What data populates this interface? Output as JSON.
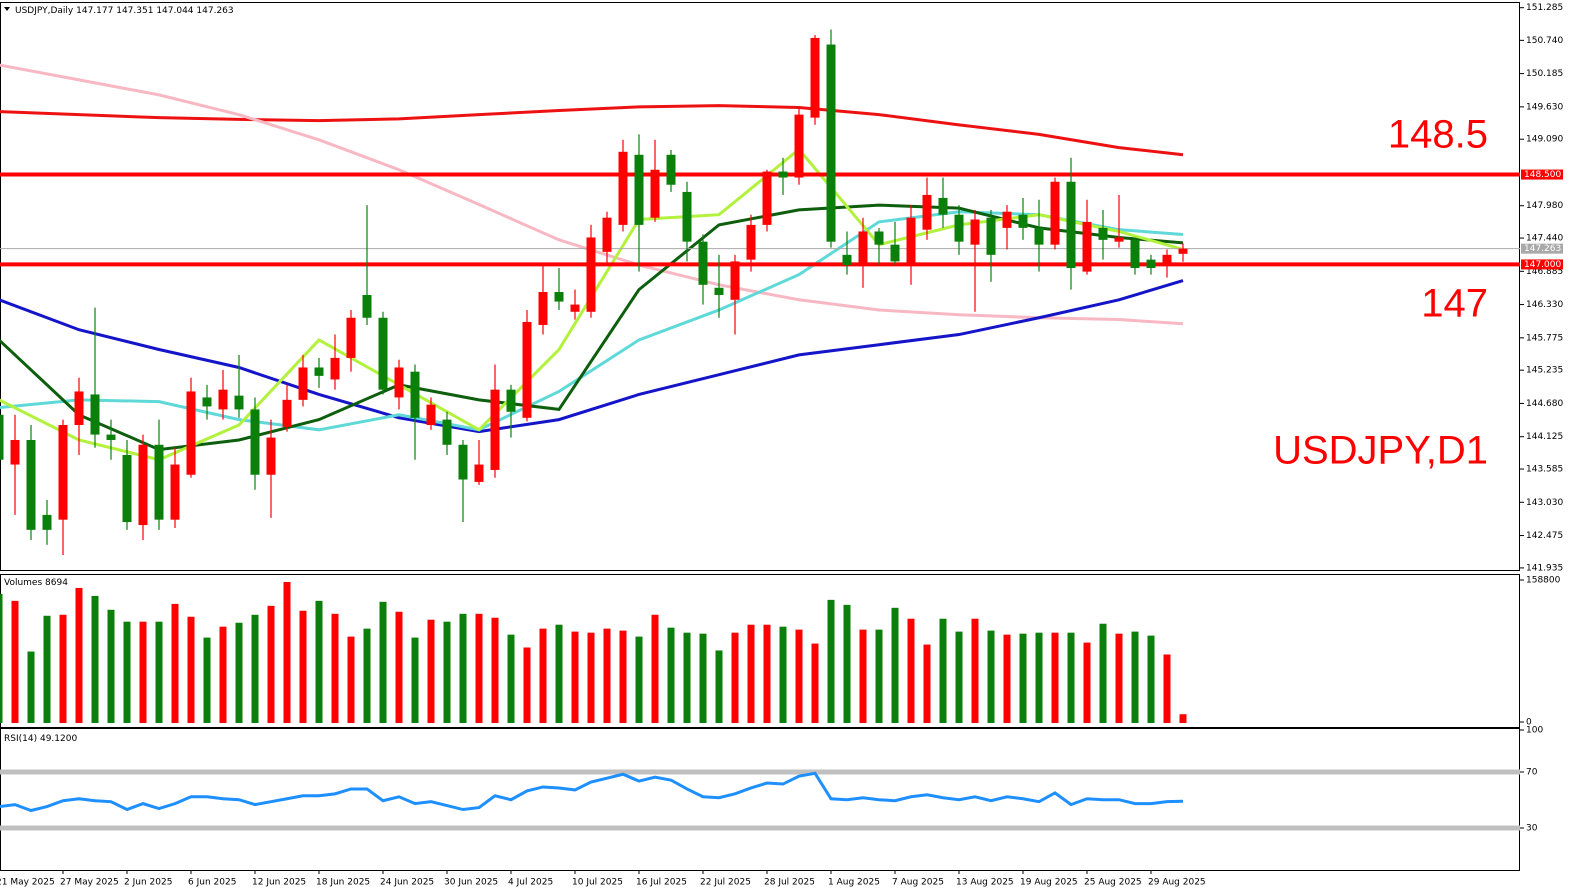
{
  "chart_data": [
    {
      "type": "candlestick",
      "header": {
        "symbol": "USDJPY,Daily",
        "ohlc": [
          147.177,
          147.351,
          147.044,
          147.263
        ]
      },
      "categories": [
        "21 May 2025",
        null,
        null,
        null,
        "27 May 2025",
        null,
        null,
        null,
        "2 Jun 2025",
        null,
        null,
        null,
        "6 Jun 2025",
        null,
        null,
        null,
        "12 Jun 2025",
        null,
        null,
        null,
        "18 Jun 2025",
        null,
        null,
        null,
        "24 Jun 2025",
        null,
        null,
        null,
        "30 Jun 2025",
        null,
        null,
        null,
        "4 Jul 2025",
        null,
        null,
        null,
        "10 Jul 2025",
        null,
        null,
        null,
        "16 Jul 2025",
        null,
        null,
        null,
        "22 Jul 2025",
        null,
        null,
        null,
        "28 Jul 2025",
        null,
        null,
        null,
        "1 Aug 2025",
        null,
        null,
        null,
        "7 Aug 2025",
        null,
        null,
        null,
        "13 Aug 2025",
        null,
        null,
        null,
        "19 Aug 2025",
        null,
        null,
        null,
        "25 Aug 2025",
        null,
        null,
        null,
        "29 Aug 2025",
        null,
        null
      ],
      "open": [
        144.49,
        143.66,
        144.07,
        142.82,
        142.74,
        144.32,
        144.83,
        144.16,
        143.82,
        142.65,
        143.99,
        142.74,
        143.49,
        144.78,
        144.58,
        144.81,
        144.58,
        143.49,
        144.29,
        144.74,
        145.28,
        145.08,
        145.44,
        146.49,
        146.11,
        144.78,
        145.21,
        144.32,
        144.41,
        143.99,
        143.37,
        143.57,
        144.91,
        144.44,
        145.99,
        146.54,
        146.21,
        146.21,
        147.21,
        147.66,
        148.83,
        147.78,
        148.83,
        148.21,
        147.38,
        146.61,
        146.41,
        147.08,
        147.66,
        148.55,
        148.45,
        149.45,
        150.67,
        147.16,
        146.99,
        147.55,
        147.33,
        146.99,
        147.58,
        148.11,
        147.83,
        147.33,
        147.78,
        147.61,
        147.83,
        147.61,
        147.33,
        148.38,
        146.88,
        147.61,
        147.38,
        147.41,
        147.08,
        146.99,
        147.177
      ],
      "high": [
        144.74,
        144.49,
        144.32,
        143.07,
        144.41,
        145.11,
        146.28,
        144.41,
        144.07,
        144.16,
        144.41,
        143.94,
        145.11,
        144.99,
        145.24,
        145.49,
        144.78,
        144.41,
        144.99,
        145.49,
        145.44,
        145.83,
        146.24,
        147.99,
        146.21,
        145.41,
        145.33,
        144.78,
        144.54,
        144.07,
        144.07,
        145.33,
        144.99,
        146.24,
        146.99,
        146.94,
        146.58,
        147.66,
        147.88,
        149.08,
        149.17,
        149.08,
        148.91,
        148.38,
        147.5,
        147.16,
        147.16,
        147.83,
        148.58,
        148.78,
        149.62,
        150.83,
        150.92,
        147.55,
        147.78,
        147.61,
        147.71,
        147.99,
        148.45,
        148.45,
        147.99,
        147.91,
        147.91,
        147.99,
        148.11,
        148.08,
        148.45,
        148.78,
        148.08,
        147.91,
        148.16,
        147.45,
        147.16,
        147.25,
        147.351
      ],
      "low": [
        143.24,
        142.82,
        142.4,
        142.32,
        142.15,
        143.82,
        143.94,
        143.74,
        142.57,
        142.4,
        142.57,
        142.6,
        143.44,
        144.41,
        144.41,
        144.44,
        143.24,
        142.77,
        144.21,
        144.63,
        144.94,
        144.91,
        145.21,
        145.99,
        144.83,
        144.58,
        143.74,
        144.24,
        143.82,
        142.7,
        143.32,
        143.44,
        144.11,
        144.38,
        145.83,
        146.24,
        146.08,
        146.11,
        146.99,
        147.55,
        146.88,
        147.71,
        148.21,
        147.05,
        146.33,
        146.11,
        145.83,
        146.88,
        147.55,
        148.16,
        148.33,
        149.33,
        147.28,
        146.83,
        146.61,
        146.99,
        146.99,
        146.66,
        147.41,
        147.61,
        147.16,
        146.21,
        146.71,
        147.25,
        147.41,
        146.88,
        147.25,
        146.58,
        146.83,
        147.08,
        147.28,
        146.83,
        146.83,
        146.78,
        147.044
      ],
      "close": [
        143.74,
        144.07,
        142.57,
        142.57,
        144.32,
        144.88,
        144.16,
        144.07,
        142.7,
        143.99,
        142.74,
        143.66,
        144.88,
        144.63,
        144.91,
        144.58,
        143.49,
        144.11,
        144.74,
        145.28,
        145.14,
        145.44,
        146.11,
        146.11,
        144.91,
        145.28,
        144.44,
        144.66,
        143.99,
        143.41,
        143.66,
        144.91,
        144.54,
        146.04,
        146.54,
        146.38,
        146.33,
        147.45,
        147.78,
        148.88,
        147.66,
        148.58,
        148.33,
        147.38,
        146.66,
        146.49,
        147.05,
        147.66,
        148.55,
        148.45,
        149.5,
        150.78,
        147.38,
        146.99,
        147.55,
        147.33,
        147.05,
        147.78,
        148.16,
        147.83,
        147.38,
        147.75,
        147.16,
        147.88,
        147.61,
        147.33,
        148.38,
        146.94,
        147.71,
        147.41,
        147.45,
        146.94,
        146.94,
        147.16,
        147.263
      ],
      "up_color": "#ff0000",
      "down_color": "#0a800a",
      "ylim": [
        141.9,
        151.38
      ],
      "yticks": [
        151.285,
        {
          "value": 150.74,
          "label": "150.740"
        },
        150.185,
        {
          "value": 149.63,
          "label": "149.630"
        },
        {
          "value": 149.09,
          "label": "149.090"
        },
        {
          "value": 147.98,
          "label": "147.980"
        },
        {
          "value": 147.44,
          "label": "147.440"
        },
        146.885,
        {
          "value": 146.33,
          "label": "146.330"
        },
        145.775,
        145.235,
        {
          "value": 144.68,
          "label": "144.680"
        },
        144.125,
        143.585,
        {
          "value": 143.03,
          "label": "143.030"
        },
        142.475,
        141.935
      ],
      "moving_averages": [
        {
          "color": "#ee1111",
          "x": [
            0,
            5,
            10,
            15,
            20,
            25,
            30,
            35,
            40,
            45,
            50,
            55,
            60,
            65,
            70,
            74
          ],
          "values": [
            149.55,
            149.5,
            149.45,
            149.42,
            149.4,
            149.43,
            149.5,
            149.57,
            149.63,
            149.65,
            149.62,
            149.5,
            149.33,
            149.17,
            148.95,
            148.83
          ]
        },
        {
          "color": "#f7b8c4",
          "x": [
            0,
            5,
            10,
            15,
            20,
            25,
            30,
            35,
            40,
            45,
            50,
            55,
            60,
            65,
            70,
            74
          ],
          "values": [
            150.33,
            150.08,
            149.83,
            149.5,
            149.08,
            148.58,
            148.0,
            147.41,
            146.99,
            146.66,
            146.41,
            146.24,
            146.16,
            146.11,
            146.08,
            146.01
          ]
        },
        {
          "color": "#1414c8",
          "x": [
            0,
            5,
            10,
            15,
            20,
            25,
            30,
            35,
            40,
            45,
            50,
            55,
            60,
            65,
            70,
            74
          ],
          "values": [
            146.41,
            145.91,
            145.58,
            145.28,
            144.83,
            144.44,
            144.21,
            144.41,
            144.83,
            145.16,
            145.49,
            145.66,
            145.83,
            146.11,
            146.41,
            146.73
          ]
        },
        {
          "color": "#5fd8d8",
          "x": [
            0,
            5,
            10,
            15,
            20,
            25,
            30,
            35,
            40,
            45,
            50,
            55,
            60,
            65,
            70,
            74
          ],
          "values": [
            144.61,
            144.74,
            144.71,
            144.41,
            144.24,
            144.49,
            144.24,
            144.88,
            145.74,
            146.24,
            146.83,
            147.71,
            147.88,
            147.83,
            147.58,
            147.5
          ]
        },
        {
          "color": "#0d5e0d",
          "x": [
            0,
            5,
            10,
            15,
            20,
            25,
            30,
            35,
            40,
            45,
            50,
            55,
            60,
            65,
            70,
            74
          ],
          "values": [
            145.74,
            144.49,
            143.91,
            144.07,
            144.41,
            144.99,
            144.74,
            144.58,
            146.58,
            147.66,
            147.91,
            147.99,
            147.94,
            147.61,
            147.45,
            147.36
          ]
        },
        {
          "color": "#b2f23c",
          "x": [
            0,
            5,
            10,
            15,
            20,
            25,
            30,
            35,
            40,
            45,
            50,
            55,
            60,
            65,
            70,
            74
          ],
          "values": [
            144.74,
            144.07,
            143.74,
            144.32,
            145.74,
            144.99,
            144.24,
            145.58,
            147.75,
            147.83,
            148.92,
            147.33,
            147.66,
            147.83,
            147.55,
            147.25
          ]
        }
      ],
      "hlines": [
        {
          "value": 148.5,
          "label": "148.500",
          "color": "#ff0000"
        },
        {
          "value": 147,
          "label": "147.000",
          "color": "#ff0000"
        }
      ],
      "annotations": [
        "148.5",
        "147",
        "USDJPY,D1"
      ]
    },
    {
      "type": "bar",
      "title": "Volumes",
      "values": [
        143300,
        135500,
        78800,
        118800,
        119900,
        149900,
        141000,
        125500,
        112200,
        112200,
        112200,
        132100,
        117700,
        94400,
        106600,
        111000,
        119900,
        129900,
        156600,
        124400,
        135500,
        121000,
        95500,
        104400,
        134400,
        123300,
        94400,
        114400,
        112200,
        121000,
        121000,
        116600,
        97700,
        83300,
        104400,
        108800,
        101100,
        99900,
        104400,
        102200,
        95500,
        119900,
        105500,
        99900,
        98800,
        80000,
        99900,
        108800,
        108800,
        106600,
        103300,
        87700,
        136600,
        131000,
        103300,
        103300,
        127700,
        115500,
        86600,
        115500,
        101100,
        115500,
        102200,
        97700,
        98800,
        99900,
        99900,
        99900,
        88800,
        109900,
        98800,
        101100,
        96600,
        75500,
        8694
      ],
      "ylim": [
        0,
        158800
      ],
      "yticks": [
        0,
        158800
      ]
    },
    {
      "type": "line",
      "title": "RSI(14)",
      "current": {
        "value": 49.12,
        "label": "49.1200"
      },
      "color": "#1e8fff",
      "values": [
        45.3,
        46.7,
        42.5,
        45.3,
        49.5,
        50.9,
        49.5,
        48.8,
        43.2,
        47.4,
        43.9,
        47.4,
        52.3,
        52.3,
        50.9,
        50.2,
        46.7,
        48.8,
        50.9,
        53.0,
        53.0,
        54.4,
        57.9,
        57.9,
        49.5,
        52.3,
        47.4,
        48.8,
        46.0,
        43.2,
        44.6,
        53.0,
        50.2,
        56.5,
        59.3,
        58.6,
        57.2,
        62.8,
        65.6,
        68.4,
        63.5,
        66.3,
        64.2,
        57.9,
        52.3,
        51.6,
        54.4,
        58.6,
        62.1,
        61.4,
        67.0,
        69.1,
        50.9,
        50.2,
        51.6,
        50.2,
        49.5,
        52.3,
        53.7,
        51.6,
        50.2,
        52.3,
        49.5,
        52.3,
        50.9,
        48.8,
        55.1,
        46.7,
        50.9,
        50.2,
        50.2,
        47.4,
        47.4,
        48.8,
        49.12
      ],
      "ylim": [
        0,
        100
      ],
      "yticks": [
        100,
        70,
        30
      ],
      "levels": [
        70,
        30
      ]
    }
  ]
}
